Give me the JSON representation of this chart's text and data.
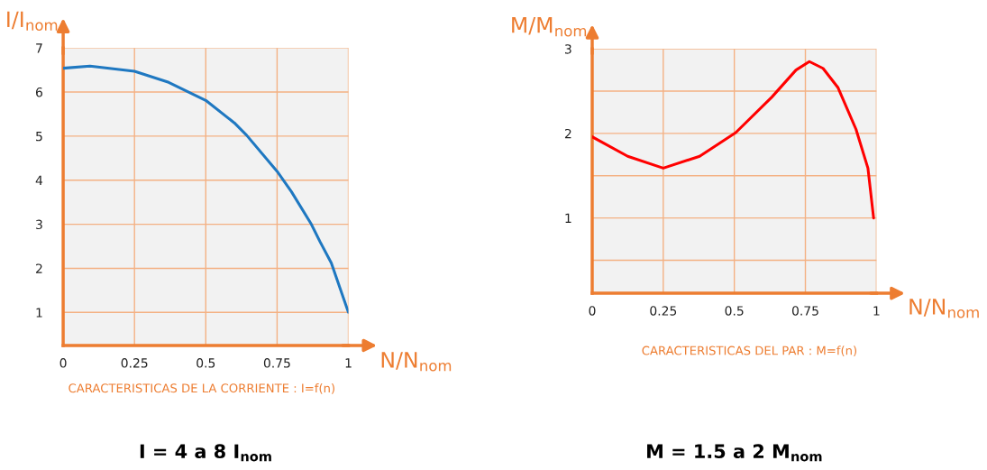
{
  "chart_data": [
    {
      "type": "line",
      "ylabel": "I/I$_{nom}$",
      "xlabel": "N/N$_{nom}$",
      "x": [
        0,
        0.094,
        0.25,
        0.37,
        0.5,
        0.6,
        0.643,
        0.75,
        0.8,
        0.87,
        0.9,
        0.94,
        1
      ],
      "series": [
        {
          "color": "#1f78c1",
          "values": [
            6.54,
            6.59,
            6.47,
            6.22,
            5.81,
            5.3,
            5.02,
            4.2,
            3.74,
            3.0,
            2.61,
            2.12,
            1.0
          ]
        }
      ],
      "xlim": [
        0,
        1
      ],
      "ylim": [
        0.25,
        7
      ],
      "xticks": [
        0,
        0.25,
        0.5,
        0.75,
        1
      ],
      "yticks": [
        1,
        2,
        3,
        4,
        5,
        6,
        7
      ],
      "grid": true,
      "marker": "none",
      "line_style": "solid",
      "annotations": [
        "CARACTERISTICAS DE LA CORRIENTE : I=f(n)",
        "I = 4 a 8 I$_{nom}$"
      ]
    },
    {
      "type": "line",
      "ylabel": "M/M$_{nom}$",
      "xlabel": "N/N$_{nom}$",
      "x": [
        0,
        0.125,
        0.25,
        0.378,
        0.505,
        0.632,
        0.717,
        0.764,
        0.812,
        0.865,
        0.928,
        0.97,
        0.99
      ],
      "series": [
        {
          "color": "#ff0000",
          "values": [
            1.96,
            1.73,
            1.59,
            1.73,
            2.01,
            2.43,
            2.75,
            2.85,
            2.77,
            2.54,
            2.05,
            1.59,
            1.0
          ]
        }
      ],
      "xlim": [
        0,
        1
      ],
      "ylim": [
        0.11,
        3
      ],
      "xticks": [
        0,
        0.25,
        0.5,
        0.75,
        1
      ],
      "yticks": [
        {
          "value": 0.5,
          "label": null
        },
        1,
        {
          "value": 1.5,
          "label": null
        },
        2,
        {
          "value": 2.5,
          "label": null
        },
        3
      ],
      "grid": true,
      "marker": "none",
      "line_style": "solid",
      "annotations": [
        "CARACTERISTICAS DEL PAR : M=f(n)",
        "M = 1.5 a 2 M$_{nom}$"
      ]
    }
  ]
}
